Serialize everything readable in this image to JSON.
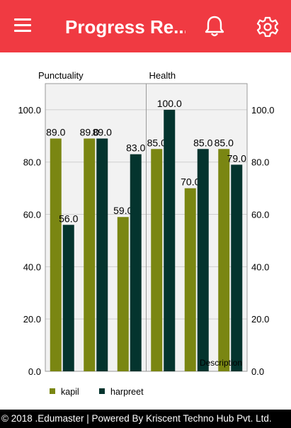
{
  "app_bar": {
    "title": "Progress Re...",
    "menu_icon": "hamburger-menu-icon",
    "bell_icon": "notification-bell-icon",
    "settings_icon": "settings-gear-icon",
    "color": "#f03a42"
  },
  "chart_data": {
    "type": "bar",
    "group_labels": [
      "Punctuality",
      "Health"
    ],
    "categories": [
      "",
      "",
      "",
      "",
      "",
      ""
    ],
    "series": [
      {
        "name": "kapil",
        "color": "#7a8612",
        "values": [
          89.0,
          89.0,
          59.0,
          85.0,
          70.0,
          85.0
        ]
      },
      {
        "name": "harpreet",
        "color": "#04342e",
        "values": [
          56.0,
          89.0,
          83.0,
          100.0,
          85.0,
          79.0
        ]
      }
    ],
    "value_labels": [
      [
        "89.0",
        "89.0",
        "59.0",
        "85.0",
        "70.0",
        "85.0"
      ],
      [
        "56.0",
        "89.0",
        "83.0",
        "100.0",
        "85.0",
        "79.0"
      ]
    ],
    "ylim": [
      0,
      110
    ],
    "yticks": [
      "0.0",
      "20.0",
      "40.0",
      "60.0",
      "80.0",
      "100.0"
    ],
    "ytick_values": [
      0,
      20,
      40,
      60,
      80,
      100
    ],
    "xlabel": "Description",
    "grid": true,
    "legend_position": "bottom-left"
  },
  "footer": {
    "text": "© 2018 .Edumaster | Powered By Kriscent Techno Hub Pvt. Ltd."
  }
}
